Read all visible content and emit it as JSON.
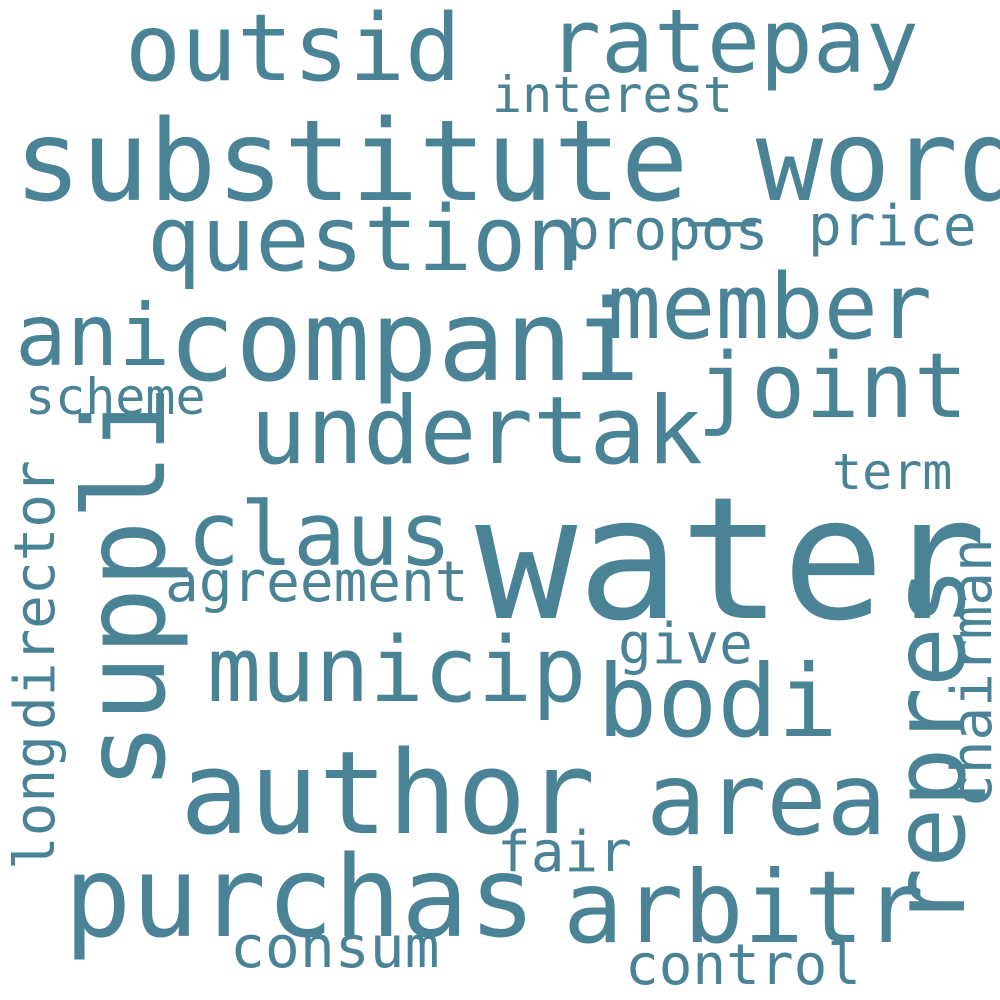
{
  "cloud": {
    "color": "#4a8396",
    "background": "#ffffff",
    "words": {
      "water": "water",
      "substitute_word": "substitute_word",
      "companipre": "compani",
      "suppli": "suppli",
      "author": "author",
      "purchas": "purchas",
      "outsid": "outsid",
      "ratepay": "ratepay",
      "undertak": "undertak",
      "question": "question",
      "member": "member",
      "joint": "joint",
      "ani": "ani",
      "municip": "municip",
      "bodi": "bodi",
      "area": "area",
      "arbitr": "arbitr",
      "repres": "repres",
      "claus": "claus",
      "interest": "interest",
      "propos": "propos",
      "price": "price",
      "scheme": "scheme",
      "term": "term",
      "agreement": "agreement",
      "give": "give",
      "director": "director",
      "long": "long",
      "chairman": "chairman",
      "fair": "fair",
      "consum": "consum",
      "control": "control"
    }
  }
}
